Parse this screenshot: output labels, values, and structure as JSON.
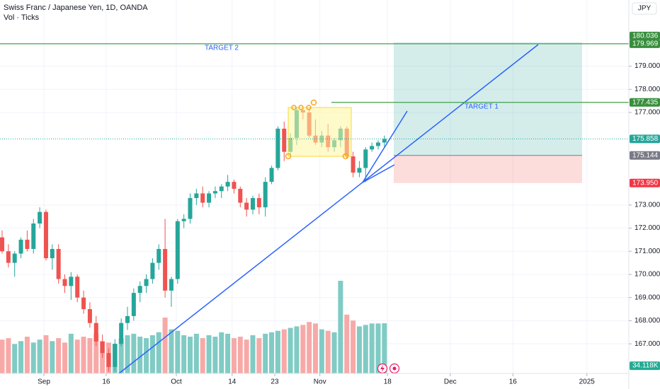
{
  "header": {
    "symbol": "Swiss Franc / Japanese Yen, 1D, OANDA",
    "indicator": "Vol · Ticks",
    "currency": "JPY"
  },
  "chart_data": {
    "type": "candlestick",
    "colors": {
      "up": "#26a69a",
      "down": "#ef5350"
    },
    "ohlc": [
      [
        171.6,
        171.9,
        170.9,
        171.0
      ],
      [
        171.0,
        171.3,
        170.3,
        170.5
      ],
      [
        170.5,
        171.0,
        169.9,
        170.9
      ],
      [
        170.9,
        171.6,
        170.7,
        171.5
      ],
      [
        171.5,
        171.9,
        171.0,
        171.1
      ],
      [
        171.1,
        172.4,
        170.9,
        172.2
      ],
      [
        172.2,
        172.9,
        172.0,
        172.7
      ],
      [
        172.7,
        172.8,
        170.6,
        170.7
      ],
      [
        170.7,
        171.3,
        170.2,
        171.1
      ],
      [
        171.1,
        171.3,
        169.6,
        169.8
      ],
      [
        169.8,
        170.0,
        169.2,
        169.5
      ],
      [
        169.5,
        170.1,
        168.9,
        169.9
      ],
      [
        169.9,
        170.0,
        168.8,
        169.0
      ],
      [
        169.0,
        169.3,
        168.3,
        168.5
      ],
      [
        168.5,
        168.8,
        167.7,
        167.9
      ],
      [
        167.9,
        168.2,
        166.9,
        167.1
      ],
      [
        167.1,
        167.4,
        166.4,
        166.6
      ],
      [
        166.6,
        166.8,
        165.8,
        166.0
      ],
      [
        166.0,
        167.2,
        165.8,
        167.0
      ],
      [
        167.0,
        168.1,
        166.9,
        167.9
      ],
      [
        167.9,
        168.6,
        167.6,
        168.2
      ],
      [
        168.2,
        169.4,
        168.0,
        169.2
      ],
      [
        169.2,
        169.7,
        168.8,
        169.5
      ],
      [
        169.5,
        170.0,
        169.2,
        169.8
      ],
      [
        169.8,
        170.7,
        169.6,
        170.5
      ],
      [
        170.5,
        171.3,
        170.2,
        171.1
      ],
      [
        171.1,
        172.4,
        169.0,
        169.3
      ],
      [
        169.3,
        169.9,
        168.6,
        169.8
      ],
      [
        169.8,
        172.4,
        169.6,
        172.3
      ],
      [
        172.3,
        172.6,
        172.0,
        172.4
      ],
      [
        172.4,
        173.5,
        172.2,
        173.3
      ],
      [
        173.3,
        173.7,
        173.0,
        173.5
      ],
      [
        173.5,
        173.8,
        172.9,
        173.1
      ],
      [
        173.1,
        173.6,
        172.9,
        173.5
      ],
      [
        173.5,
        173.8,
        173.3,
        173.6
      ],
      [
        173.6,
        173.9,
        173.3,
        173.8
      ],
      [
        173.8,
        174.3,
        173.6,
        174.0
      ],
      [
        174.0,
        174.1,
        173.5,
        173.7
      ],
      [
        173.7,
        173.8,
        172.9,
        173.1
      ],
      [
        173.1,
        173.3,
        172.5,
        172.8
      ],
      [
        172.8,
        173.4,
        172.6,
        173.3
      ],
      [
        173.3,
        173.5,
        172.6,
        172.9
      ],
      [
        172.9,
        174.2,
        172.5,
        174.0
      ],
      [
        174.0,
        174.7,
        173.9,
        174.6
      ],
      [
        174.6,
        176.4,
        174.5,
        176.3
      ],
      [
        176.3,
        176.6,
        174.9,
        175.3
      ],
      [
        175.3,
        176.1,
        175.1,
        175.9
      ],
      [
        175.9,
        177.2,
        175.6,
        177.1
      ],
      [
        177.1,
        177.2,
        176.7,
        177.0
      ],
      [
        177.0,
        177.2,
        175.9,
        176.0
      ],
      [
        176.0,
        176.7,
        175.6,
        175.7
      ],
      [
        175.7,
        176.2,
        175.5,
        176.0
      ],
      [
        176.0,
        176.5,
        175.3,
        175.5
      ],
      [
        175.5,
        175.9,
        175.3,
        175.8
      ],
      [
        175.8,
        176.4,
        175.5,
        176.3
      ],
      [
        176.3,
        176.4,
        175.0,
        175.1
      ],
      [
        175.1,
        175.3,
        174.2,
        174.4
      ],
      [
        174.4,
        174.9,
        174.2,
        174.6
      ],
      [
        174.6,
        175.5,
        174.0,
        175.4
      ],
      [
        175.4,
        175.7,
        175.3,
        175.55
      ],
      [
        175.55,
        175.8,
        175.4,
        175.7
      ],
      [
        175.7,
        176.0,
        175.5,
        175.858
      ]
    ],
    "volume": {
      "values": [
        23000,
        24000,
        20000,
        22000,
        25000,
        21000,
        23000,
        26000,
        22000,
        24000,
        21000,
        27000,
        23000,
        25000,
        24000,
        27000,
        22000,
        21000,
        20000,
        24000,
        26000,
        27000,
        25000,
        24000,
        26000,
        28000,
        38000,
        30000,
        29000,
        26000,
        25000,
        27000,
        24000,
        26000,
        25000,
        28000,
        27000,
        24000,
        25000,
        23000,
        26000,
        24000,
        27000,
        28000,
        29000,
        30000,
        31000,
        32000,
        33000,
        35000,
        34000,
        30000,
        29000,
        28000,
        63000,
        40000,
        36000,
        32000,
        33000,
        34000,
        34000,
        34118
      ],
      "last_label": "34.118K",
      "vlim": [
        0,
        254000
      ],
      "up_color": "#80cbc4",
      "down_color": "#f7a9a7"
    },
    "ylim": [
      165.72,
      181.86
    ],
    "yticks": [
      {
        "value": 167,
        "label": "167.000"
      },
      {
        "value": 168,
        "label": "168.000"
      },
      {
        "value": 169,
        "label": "169.000"
      },
      {
        "value": 170,
        "label": "170.000"
      },
      {
        "value": 171,
        "label": "171.000"
      },
      {
        "value": 172,
        "label": "172.000"
      },
      {
        "value": 173,
        "label": "173.000"
      },
      {
        "value": 177,
        "label": "177.000"
      },
      {
        "value": 178,
        "label": "178.000"
      },
      {
        "value": 179,
        "label": "179.000"
      }
    ],
    "xlim": [
      -0.34,
      100
    ],
    "xticks": [
      {
        "value": 6.67,
        "label": "Sep"
      },
      {
        "value": 16.6,
        "label": "16"
      },
      {
        "value": 27.8,
        "label": "Oct"
      },
      {
        "value": 36.7,
        "label": "14"
      },
      {
        "value": 43.5,
        "label": "23"
      },
      {
        "value": 50.7,
        "label": "Nov"
      },
      {
        "value": 61.5,
        "label": "18"
      },
      {
        "value": 71.5,
        "label": "Dec"
      },
      {
        "value": 81.5,
        "label": "16"
      },
      {
        "value": 93.3,
        "label": "2025"
      }
    ],
    "grid": true,
    "last_price": {
      "value": 175.858,
      "label": "175.858"
    },
    "price_lines": [
      {
        "name": "TARGET 2",
        "value": 179.969,
        "label": "179.969"
      },
      {
        "name": "TARGET 1",
        "value": 177.435,
        "label": "177.435"
      }
    ],
    "position": {
      "target": {
        "value": 180.036,
        "label": "180.036"
      },
      "entry": {
        "value": 175.144,
        "label": "175.144"
      },
      "stop": {
        "value": 173.95,
        "label": "173.950"
      }
    }
  }
}
